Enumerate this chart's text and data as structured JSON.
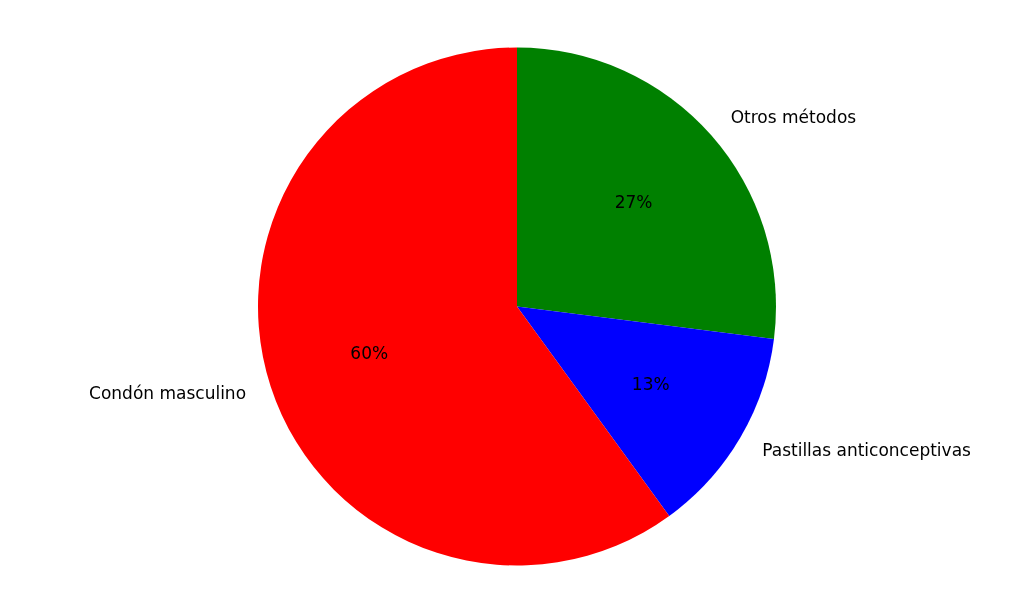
{
  "chart_data": {
    "type": "pie",
    "categories": [
      "Otros métodos",
      "Pastillas anticonceptivas",
      "Condón masculino"
    ],
    "values": [
      27,
      13,
      60
    ],
    "value_labels": [
      "27%",
      "13%",
      "60%"
    ],
    "colors": [
      "#008000",
      "#0000ff",
      "#ff0000"
    ],
    "legend": false
  }
}
